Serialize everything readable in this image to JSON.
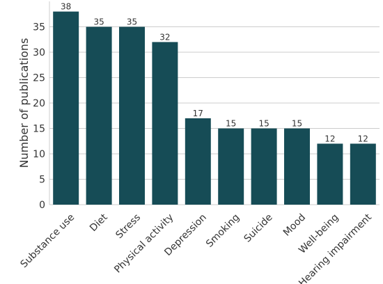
{
  "chart_data": {
    "type": "bar",
    "categories": [
      "Substance use",
      "Diet",
      "Stress",
      "Physical activity",
      "Depression",
      "Smoking",
      "Suicide",
      "Mood",
      "Well-being",
      "Hearing impairment"
    ],
    "values": [
      38,
      35,
      35,
      32,
      17,
      15,
      15,
      15,
      12,
      12
    ],
    "ylabel": "Number of publications",
    "xlabel": "",
    "ylim": [
      0,
      40
    ],
    "yticks": [
      0,
      5,
      10,
      15,
      20,
      25,
      30,
      35
    ],
    "grid": "horizontal",
    "bar_color": "#164c56",
    "data_labels": true
  }
}
